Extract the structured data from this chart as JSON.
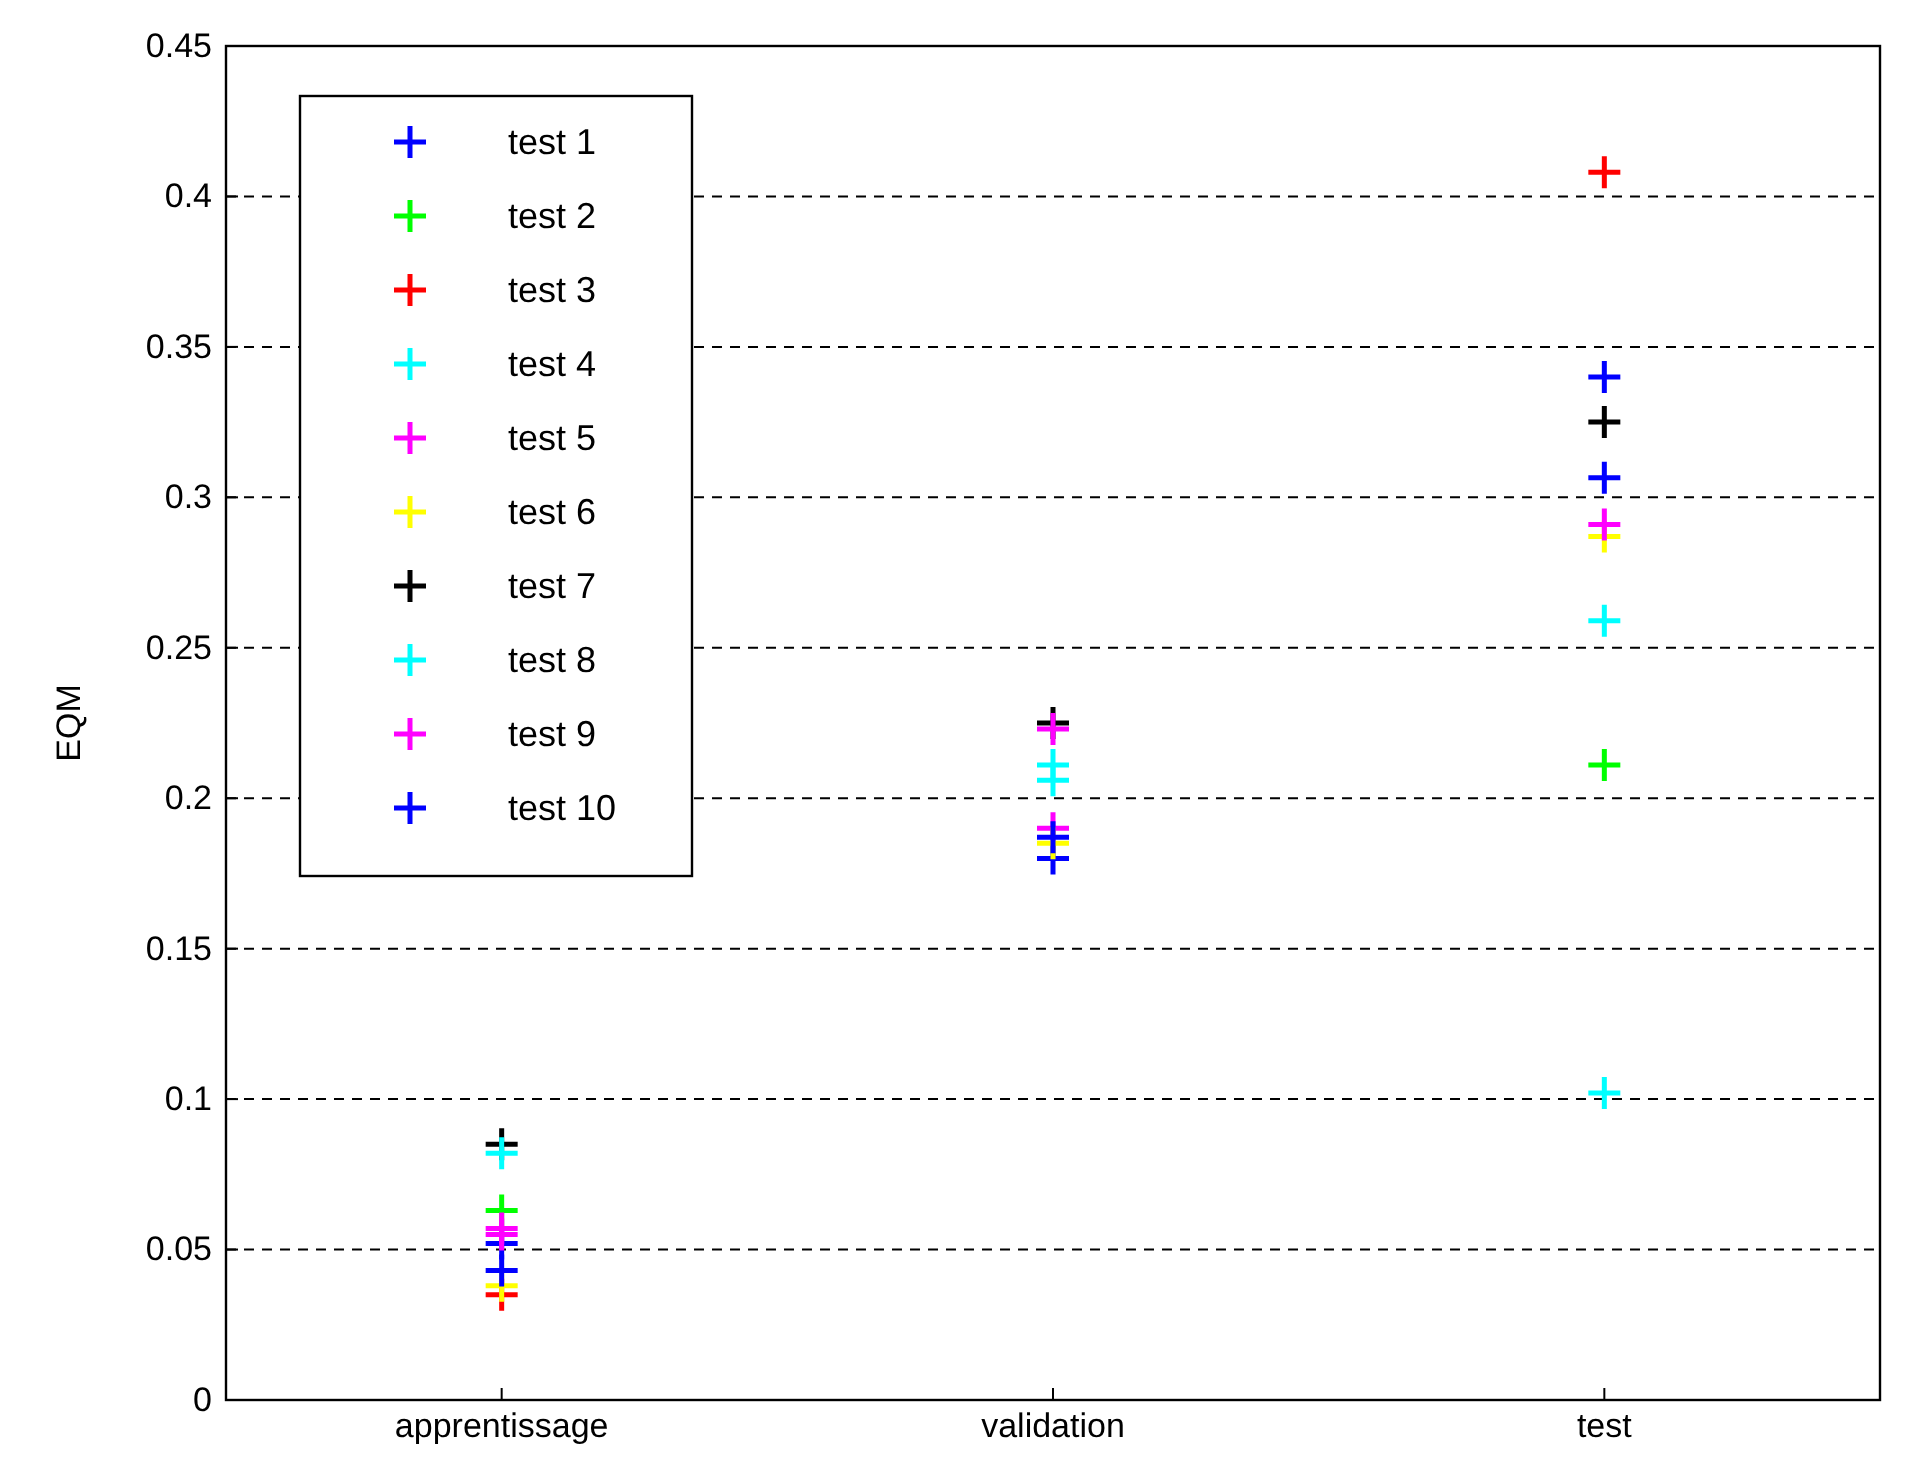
{
  "chart_data": {
    "type": "scatter",
    "ylabel": "EQM",
    "categories": [
      "apprentissage",
      "validation",
      "test"
    ],
    "ylim": [
      0,
      0.45
    ],
    "yticks": [
      0,
      0.05,
      0.1,
      0.15,
      0.2,
      0.25,
      0.3,
      0.35,
      0.4,
      0.45
    ],
    "grid": "y",
    "legend": "top left",
    "marker": "cross",
    "series": [
      {
        "name": "test 1",
        "color": "#0000ff",
        "values": [
          0.052,
          0.18,
          0.34
        ]
      },
      {
        "name": "test 2",
        "color": "#00ff00",
        "values": [
          0.063,
          null,
          0.211
        ]
      },
      {
        "name": "test 3",
        "color": "#ff0000",
        "values": [
          0.035,
          null,
          0.408
        ]
      },
      {
        "name": "test 4",
        "color": "#00ffff",
        "values": [
          null,
          0.206,
          0.102
        ]
      },
      {
        "name": "test 5",
        "color": "#ff00ff",
        "values": [
          0.055,
          0.19,
          null
        ]
      },
      {
        "name": "test 6",
        "color": "#ffff00",
        "values": [
          0.038,
          0.185,
          0.287
        ]
      },
      {
        "name": "test 7",
        "color": "#000000",
        "values": [
          0.085,
          0.225,
          0.325
        ]
      },
      {
        "name": "test 8",
        "color": "#00ffff",
        "values": [
          0.082,
          0.211,
          0.259
        ]
      },
      {
        "name": "test 9",
        "color": "#ff00ff",
        "values": [
          0.057,
          0.223,
          0.291
        ]
      },
      {
        "name": "test 10",
        "color": "#0000ff",
        "values": [
          0.043,
          0.187,
          0.3065
        ]
      }
    ]
  }
}
